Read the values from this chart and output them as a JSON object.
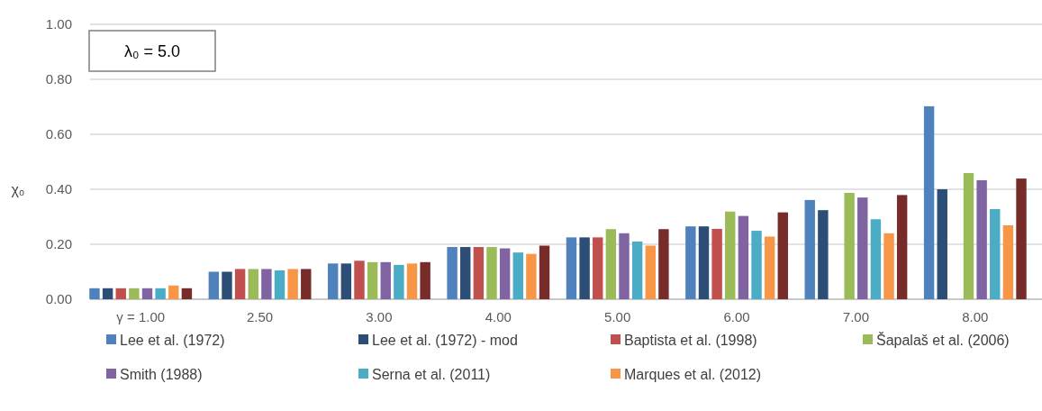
{
  "chart_data": {
    "type": "bar",
    "ylabel": "χ₀",
    "annotations": [
      "λ₀ = 5.0"
    ],
    "categories": [
      "γ = 1.00",
      "2.50",
      "3.00",
      "4.00",
      "5.00",
      "6.00",
      "7.00",
      "8.00"
    ],
    "ylim": [
      0,
      1
    ],
    "yticks": [
      {
        "value": 0,
        "label": "0.00"
      },
      {
        "value": 0.2,
        "label": "0.20"
      },
      {
        "value": 0.4,
        "label": "0.40"
      },
      {
        "value": 0.6,
        "label": "0.60"
      },
      {
        "value": 0.8,
        "label": "0.80"
      },
      {
        "value": 1,
        "label": "1.00"
      }
    ],
    "grid": "y",
    "legend": "bottom",
    "series": [
      {
        "name": "Lee et al. (1972)",
        "color": "#4f81bd",
        "values": [
          0.04,
          0.1,
          0.13,
          0.19,
          0.225,
          0.265,
          0.361,
          0.702
        ]
      },
      {
        "name": "Lee et al. (1972) - mod",
        "color": "#2c4d75",
        "values": [
          0.04,
          0.1,
          0.13,
          0.19,
          0.225,
          0.265,
          0.324,
          0.4
        ]
      },
      {
        "name": "Baptista et al.  (1998)",
        "color": "#c0504d",
        "values": [
          0.04,
          0.11,
          0.14,
          0.19,
          0.225,
          0.256,
          null,
          null
        ]
      },
      {
        "name": "Šapalaš et al. (2006)",
        "color": "#9bbb59",
        "values": [
          0.04,
          0.11,
          0.135,
          0.19,
          0.255,
          0.319,
          0.387,
          0.459
        ]
      },
      {
        "name": "Smith (1988)",
        "color": "#8064a2",
        "values": [
          0.04,
          0.11,
          0.135,
          0.185,
          0.24,
          0.303,
          0.37,
          0.433
        ]
      },
      {
        "name": "Serna et al. (2011)",
        "color": "#4bacc6",
        "values": [
          0.04,
          0.105,
          0.125,
          0.17,
          0.21,
          0.249,
          0.291,
          0.328
        ]
      },
      {
        "name": "Marques et al. (2012)",
        "color": "#f79646",
        "values": [
          0.05,
          0.11,
          0.13,
          0.165,
          0.195,
          0.228,
          0.24,
          0.269
        ]
      },
      {
        "color": "#772c2a",
        "values": [
          0.04,
          0.11,
          0.135,
          0.195,
          0.255,
          0.316,
          0.379,
          0.439
        ]
      }
    ]
  }
}
